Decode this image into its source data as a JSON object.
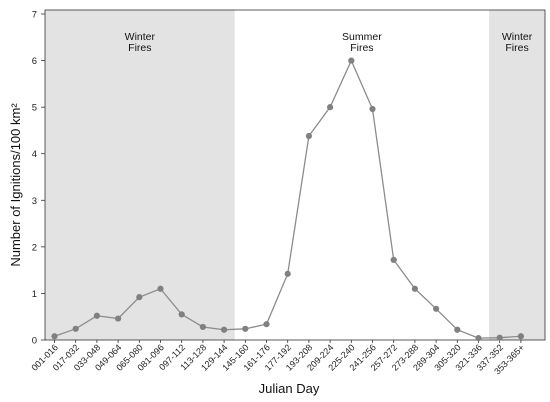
{
  "chart_data": {
    "type": "line",
    "xlabel": "Julian Day",
    "ylabel": "Number of Ignitions/100 km²",
    "ylim": [
      0,
      7
    ],
    "yticks": [
      0,
      1,
      2,
      3,
      4,
      5,
      6,
      7
    ],
    "categories": [
      "001-016",
      "017-032",
      "033-048",
      "049-064",
      "065-080",
      "081-096",
      "097-112",
      "113-128",
      "129-144",
      "145-160",
      "161-176",
      "177-192",
      "193-208",
      "209-224",
      "225-240",
      "241-256",
      "257-272",
      "273-288",
      "289-304",
      "305-320",
      "321-336",
      "337-352",
      "353-365+"
    ],
    "series": [
      {
        "values": [
          0.08,
          0.24,
          0.52,
          0.46,
          0.92,
          1.1,
          0.55,
          0.28,
          0.22,
          0.24,
          0.34,
          1.42,
          4.38,
          5.0,
          6.0,
          4.96,
          1.72,
          1.1,
          0.67,
          0.22,
          0.04,
          0.05,
          0.08
        ]
      }
    ],
    "regions": [
      {
        "label": "Winter\nFires",
        "from": "001-016",
        "to": "129-144",
        "shaded": true
      },
      {
        "label": "Summer\nFires",
        "from": "145-160",
        "to": "321-336",
        "shaded": false
      },
      {
        "label": "Winter\nFires",
        "from": "337-352",
        "to": "353-365+",
        "shaded": true
      }
    ],
    "colors": {
      "line": "#8c8c8c",
      "marker": "#808080",
      "shade": "#e3e3e3",
      "axis": "#333333"
    },
    "grid": false,
    "legend": "none"
  }
}
